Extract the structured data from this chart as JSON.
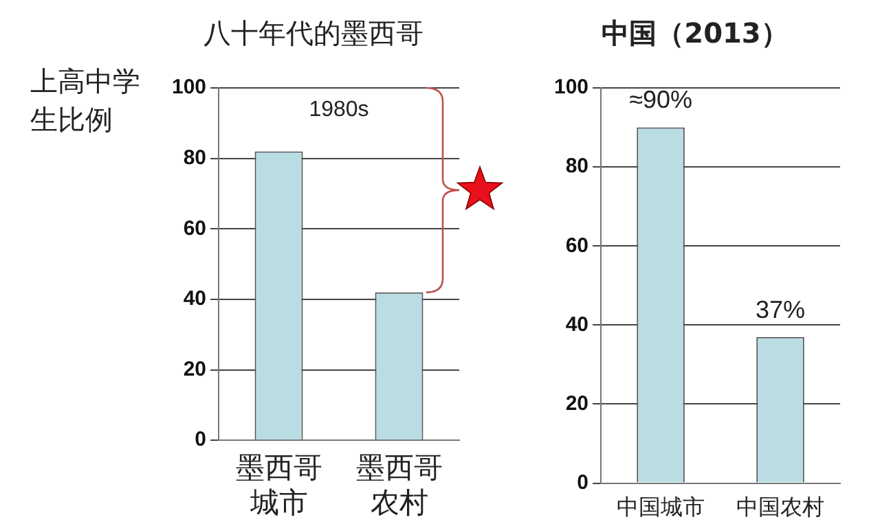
{
  "chart_data": [
    {
      "type": "bar",
      "title": "八十年代的墨西哥",
      "ylabel": "上高中学生比例",
      "categories": [
        "墨西哥城市",
        "墨西哥农村"
      ],
      "values": [
        82,
        42
      ],
      "color": "#b9dde3",
      "ylim": [
        0,
        100
      ],
      "yticks": [
        0,
        20,
        40,
        60,
        80,
        100
      ],
      "grid": "y",
      "legend": false,
      "annotations": [
        "1980s"
      ]
    },
    {
      "type": "bar",
      "title": "中国（2013）",
      "categories": [
        "中国城市",
        "中国农村"
      ],
      "values": [
        90,
        37
      ],
      "value_labels": [
        "≈90%",
        "37%"
      ],
      "color": "#b9dde3",
      "ylim": [
        0,
        100
      ],
      "yticks": [
        0,
        20,
        40,
        60,
        80,
        100
      ],
      "grid": "y",
      "legend": false
    }
  ]
}
